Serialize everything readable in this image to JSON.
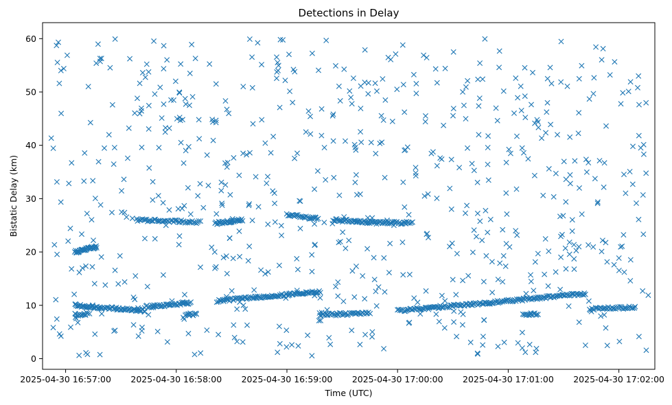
{
  "chart_data": {
    "type": "scatter",
    "title": "Detections in Delay",
    "xlabel": "Time (UTC)",
    "ylabel": "Bistatic Delay (km)",
    "marker": "x",
    "marker_color": "#1f77b4",
    "grid": false,
    "legend": "none",
    "x_unit": "seconds since 2025-04-30 16:56:00 UTC",
    "xlim": [
      47.5,
      379.5
    ],
    "ylim": [
      -2.0,
      63.0
    ],
    "x_ticks": [
      {
        "value": 60,
        "label": "2025-04-30 16:57:00"
      },
      {
        "value": 120,
        "label": "2025-04-30 16:58:00"
      },
      {
        "value": 180,
        "label": "2025-04-30 16:59:00"
      },
      {
        "value": 240,
        "label": "2025-04-30 17:00:00"
      },
      {
        "value": 300,
        "label": "2025-04-30 17:01:00"
      },
      {
        "value": 360,
        "label": "2025-04-30 17:02:00"
      }
    ],
    "y_ticks": [
      {
        "value": 0,
        "label": "0"
      },
      {
        "value": 10,
        "label": "10"
      },
      {
        "value": 20,
        "label": "20"
      },
      {
        "value": 30,
        "label": "30"
      },
      {
        "value": 40,
        "label": "40"
      },
      {
        "value": 50,
        "label": "50"
      },
      {
        "value": 60,
        "label": "60"
      }
    ],
    "tracks": [
      {
        "x": [
          65,
          77
        ],
        "y": [
          20.0,
          21.0
        ],
        "n": 40
      },
      {
        "x": [
          65,
          80
        ],
        "y": [
          10.0,
          9.5
        ],
        "n": 35
      },
      {
        "x": [
          65,
          72
        ],
        "y": [
          8.2,
          8.4
        ],
        "n": 15
      },
      {
        "x": [
          81,
          103
        ],
        "y": [
          9.6,
          9.0
        ],
        "n": 45
      },
      {
        "x": [
          103,
          128
        ],
        "y": [
          9.7,
          10.4
        ],
        "n": 45
      },
      {
        "x": [
          125,
          131
        ],
        "y": [
          8.3,
          8.3
        ],
        "n": 12
      },
      {
        "x": [
          99,
          133
        ],
        "y": [
          26.0,
          25.6
        ],
        "n": 50
      },
      {
        "x": [
          141,
          156
        ],
        "y": [
          25.4,
          26.0
        ],
        "n": 30
      },
      {
        "x": [
          142,
          163
        ],
        "y": [
          10.8,
          11.5
        ],
        "n": 35
      },
      {
        "x": [
          163,
          198
        ],
        "y": [
          11.5,
          12.5
        ],
        "n": 65
      },
      {
        "x": [
          180,
          197
        ],
        "y": [
          27.0,
          26.2
        ],
        "n": 30
      },
      {
        "x": [
          205,
          228
        ],
        "y": [
          26.0,
          25.5
        ],
        "n": 45
      },
      {
        "x": [
          228,
          248
        ],
        "y": [
          25.5,
          25.5
        ],
        "n": 35
      },
      {
        "x": [
          198,
          225
        ],
        "y": [
          8.2,
          8.5
        ],
        "n": 45
      },
      {
        "x": [
          240,
          290
        ],
        "y": [
          9.0,
          10.5
        ],
        "n": 85
      },
      {
        "x": [
          290,
          342
        ],
        "y": [
          10.5,
          12.2
        ],
        "n": 90
      },
      {
        "x": [
          308,
          316
        ],
        "y": [
          8.2,
          8.3
        ],
        "n": 15
      },
      {
        "x": [
          344,
          369
        ],
        "y": [
          9.3,
          9.6
        ],
        "n": 40
      }
    ],
    "clutter": {
      "x_range": [
        52,
        376
      ],
      "y_range": [
        0.5,
        60
      ],
      "n": 700,
      "seed": 20250430
    }
  }
}
